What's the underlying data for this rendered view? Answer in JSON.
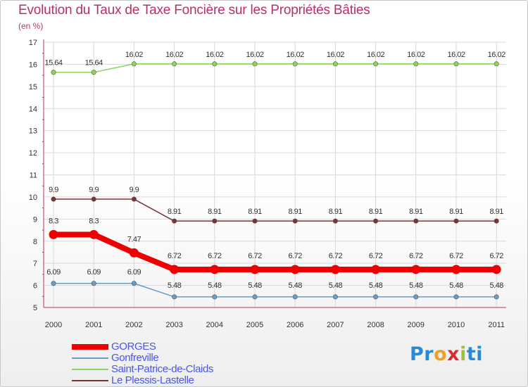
{
  "title": "Evolution du Taux de Taxe Foncière sur les Propriétés Bâties",
  "subtitle": "(en %)",
  "logo": {
    "letters": [
      "Pr",
      "o",
      "x",
      "i",
      "ti"
    ]
  },
  "chart_data": {
    "type": "line",
    "title": "Evolution du Taux de Taxe Foncière sur les Propriétés Bâties",
    "ylabel": "(en %)",
    "xlabel": "",
    "ylim": [
      5,
      17
    ],
    "yticks": [
      "5",
      "6",
      "7",
      "8",
      "9",
      "10",
      "11",
      "12",
      "13",
      "14",
      "15",
      "16",
      "17"
    ],
    "categories": [
      "2000",
      "2001",
      "2002",
      "2003",
      "2004",
      "2005",
      "2006",
      "2007",
      "2008",
      "2009",
      "2010",
      "2011"
    ],
    "series": [
      {
        "name": "GORGES",
        "color": "#ee0000",
        "emphasis": true,
        "values": [
          8.3,
          8.3,
          7.47,
          6.72,
          6.72,
          6.72,
          6.72,
          6.72,
          6.72,
          6.72,
          6.72,
          6.72
        ],
        "labels": [
          "8.3",
          "8.3",
          "7.47",
          "6.72",
          "6.72",
          "6.72",
          "6.72",
          "6.72",
          "6.72",
          "6.72",
          "6.72",
          "6.72"
        ]
      },
      {
        "name": "Gonfreville",
        "color": "#6a9cc8",
        "emphasis": false,
        "values": [
          6.09,
          6.09,
          6.09,
          5.48,
          5.48,
          5.48,
          5.48,
          5.48,
          5.48,
          5.48,
          5.48,
          5.48
        ],
        "labels": [
          "6.09",
          "6.09",
          "6.09",
          "5.48",
          "5.48",
          "5.48",
          "5.48",
          "5.48",
          "5.48",
          "5.48",
          "5.48",
          "5.48"
        ]
      },
      {
        "name": "Saint-Patrice-de-Claids",
        "color": "#8fd45a",
        "emphasis": false,
        "values": [
          15.64,
          15.64,
          16.02,
          16.02,
          16.02,
          16.02,
          16.02,
          16.02,
          16.02,
          16.02,
          16.02,
          16.02
        ],
        "labels": [
          "15.64",
          "15.64",
          "16.02",
          "16.02",
          "16.02",
          "16.02",
          "16.02",
          "16.02",
          "16.02",
          "16.02",
          "16.02",
          "16.02"
        ]
      },
      {
        "name": "Le Plessis-Lastelle",
        "color": "#7a3434",
        "emphasis": false,
        "values": [
          9.9,
          9.9,
          9.9,
          8.91,
          8.91,
          8.91,
          8.91,
          8.91,
          8.91,
          8.91,
          8.91,
          8.91
        ],
        "labels": [
          "9.9",
          "9.9",
          "9.9",
          "8.91",
          "8.91",
          "8.91",
          "8.91",
          "8.91",
          "8.91",
          "8.91",
          "8.91",
          "8.91"
        ]
      }
    ],
    "grid": true,
    "legend": "bottom-left"
  }
}
